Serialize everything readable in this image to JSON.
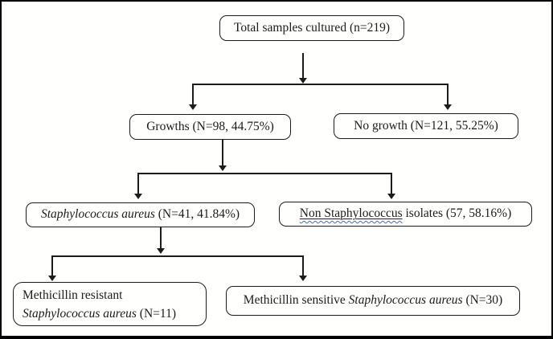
{
  "diagram": {
    "type": "flowchart",
    "nodes": {
      "total": {
        "label": "Total samples cultured (n=219)"
      },
      "growths": {
        "label": "Growths (N=98, 44.75%)"
      },
      "no_growth": {
        "label": "No growth (N=121, 55.25%)"
      },
      "s_aureus": {
        "species": "Staphylococcus aureus",
        "suffix": " (N=41, 41.84%)"
      },
      "non_staph": {
        "underlined": "Non Staphylococcus",
        "suffix": " isolates (57, 58.16%)"
      },
      "mrsa": {
        "line1": "Methicillin resistant",
        "species": "Staphylococcus aureus",
        "suffix": " (N=11)"
      },
      "mssa": {
        "prefix": "Methicillin sensitive ",
        "species": "Staphylococcus aureus",
        "suffix": " (N=30)"
      }
    },
    "edges": [
      {
        "from": "total",
        "to": "growths"
      },
      {
        "from": "total",
        "to": "no_growth"
      },
      {
        "from": "growths",
        "to": "s_aureus"
      },
      {
        "from": "growths",
        "to": "non_staph"
      },
      {
        "from": "s_aureus",
        "to": "mrsa"
      },
      {
        "from": "s_aureus",
        "to": "mssa"
      }
    ],
    "colors": {
      "frame_border": "#000000",
      "box_border": "#1c1c1c",
      "text": "#1b1b1b",
      "connector": "#1c1c1c",
      "squiggle_underline": "#4169c8",
      "background": "#fffffd"
    }
  }
}
